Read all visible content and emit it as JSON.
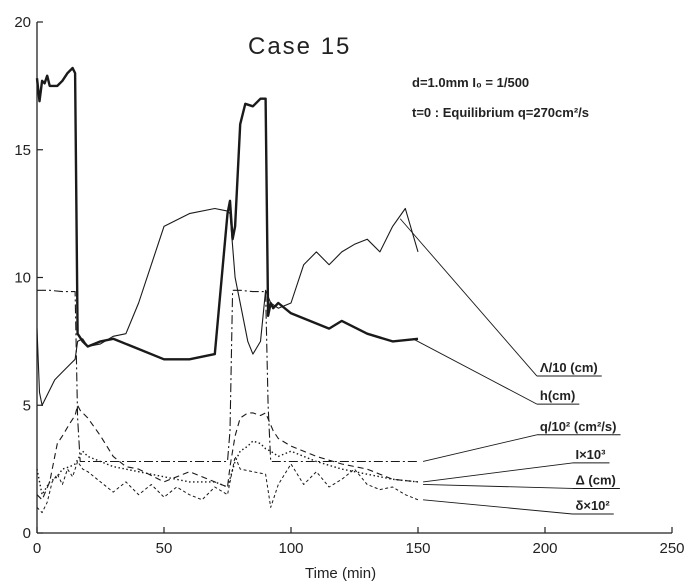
{
  "chart_data": {
    "type": "line",
    "title": "Case  15",
    "annotations": [
      "d=1.0mm  I₀ = 1/500",
      "t=0 : Equilibrium   q=270cm²/s"
    ],
    "xlabel": "Time (min)",
    "ylabel": "",
    "xlim": [
      0,
      250
    ],
    "ylim": [
      0,
      20
    ],
    "xticks": [
      0,
      50,
      100,
      150,
      200,
      250
    ],
    "yticks": [
      0,
      5,
      10,
      15,
      20
    ],
    "grid": false,
    "series": [
      {
        "name": "Λ/10 (cm)",
        "style": "thin",
        "x": [
          0,
          1,
          2,
          4,
          7,
          10,
          13,
          15,
          16,
          18,
          20,
          25,
          30,
          35,
          40,
          50,
          60,
          70,
          75,
          76,
          78,
          80,
          83,
          85,
          88,
          90,
          92,
          95,
          100,
          105,
          110,
          115,
          120,
          125,
          130,
          135,
          140,
          145,
          150
        ],
        "y": [
          8.0,
          5.5,
          5.0,
          5.4,
          6.0,
          6.3,
          6.6,
          6.8,
          7.5,
          7.6,
          7.3,
          7.4,
          7.7,
          7.8,
          9.0,
          12.0,
          12.5,
          12.7,
          12.6,
          12.5,
          10.0,
          9.0,
          7.5,
          7.0,
          7.5,
          9.5,
          9.0,
          8.8,
          9.0,
          10.5,
          11.0,
          10.5,
          11.0,
          11.3,
          11.5,
          11.0,
          12.0,
          12.7,
          11.0
        ]
      },
      {
        "name": "h(cm)",
        "style": "thick",
        "x": [
          0,
          1,
          2,
          3,
          4,
          5,
          8,
          10,
          12,
          14,
          15,
          16,
          18,
          20,
          25,
          30,
          40,
          50,
          55,
          60,
          70,
          75,
          76,
          77,
          78,
          80,
          82,
          85,
          88,
          90,
          91,
          92,
          93,
          95,
          100,
          105,
          110,
          115,
          120,
          130,
          140,
          150
        ],
        "y": [
          17.8,
          16.9,
          17.7,
          17.6,
          17.9,
          17.5,
          17.5,
          17.7,
          18.0,
          18.2,
          18.0,
          7.8,
          7.5,
          7.3,
          7.5,
          7.6,
          7.2,
          6.8,
          6.8,
          6.8,
          7.0,
          12.5,
          13.0,
          11.5,
          12.0,
          16.0,
          16.8,
          16.7,
          17.0,
          17.0,
          8.5,
          9.0,
          8.8,
          9.0,
          8.6,
          8.4,
          8.2,
          8.0,
          8.3,
          7.8,
          7.5,
          7.6
        ]
      },
      {
        "name": "q/10² (cm²/s)",
        "style": "dashdot",
        "x": [
          0,
          1,
          5,
          10,
          15,
          16,
          17,
          20,
          30,
          50,
          70,
          75,
          76,
          77,
          80,
          85,
          90,
          91,
          92,
          100,
          120,
          150
        ],
        "y": [
          9.5,
          9.5,
          9.5,
          9.45,
          9.45,
          4.5,
          2.8,
          2.8,
          2.8,
          2.8,
          2.8,
          2.8,
          4.0,
          9.5,
          9.5,
          9.45,
          9.45,
          5.0,
          2.8,
          2.8,
          2.8,
          2.8
        ]
      },
      {
        "name": "I×10³",
        "style": "dashed",
        "x": [
          0,
          2,
          5,
          8,
          10,
          13,
          15,
          16,
          17,
          20,
          25,
          30,
          35,
          40,
          50,
          60,
          70,
          75,
          76,
          78,
          80,
          83,
          85,
          88,
          90,
          93,
          95,
          100,
          110,
          120,
          130,
          140,
          150
        ],
        "y": [
          1.5,
          1.3,
          2.0,
          3.5,
          3.8,
          4.3,
          4.6,
          5.0,
          4.8,
          4.5,
          3.8,
          3.0,
          2.6,
          2.5,
          2.0,
          2.4,
          2.0,
          1.8,
          2.6,
          3.8,
          4.5,
          4.7,
          4.7,
          4.6,
          4.7,
          4.0,
          3.7,
          3.4,
          3.0,
          2.7,
          2.5,
          2.1,
          2.0
        ]
      },
      {
        "name": "Δ (cm)",
        "style": "dotted",
        "x": [
          0,
          2,
          5,
          8,
          10,
          13,
          15,
          18,
          20,
          25,
          30,
          40,
          50,
          60,
          70,
          75,
          78,
          80,
          83,
          85,
          88,
          90,
          92,
          95,
          100,
          110,
          120,
          130,
          140,
          150
        ],
        "y": [
          2.5,
          1.5,
          2.0,
          2.2,
          2.5,
          2.6,
          2.7,
          3.2,
          3.0,
          2.8,
          2.6,
          2.4,
          2.2,
          2.0,
          2.0,
          1.8,
          2.8,
          3.2,
          3.4,
          3.6,
          3.5,
          3.3,
          3.2,
          3.0,
          3.2,
          2.8,
          2.5,
          2.3,
          2.1,
          2.0
        ]
      },
      {
        "name": "δ×10²",
        "style": "finedash",
        "x": [
          0,
          2,
          4,
          6,
          8,
          10,
          12,
          14,
          16,
          18,
          20,
          25,
          30,
          35,
          40,
          45,
          50,
          55,
          60,
          65,
          70,
          75,
          78,
          80,
          85,
          90,
          92,
          95,
          100,
          105,
          110,
          115,
          120,
          125,
          130,
          135,
          140,
          145,
          150
        ],
        "y": [
          1.0,
          0.8,
          1.2,
          2.0,
          2.3,
          1.9,
          2.5,
          2.2,
          2.8,
          2.5,
          2.4,
          2.0,
          1.6,
          2.0,
          1.5,
          1.9,
          1.4,
          1.8,
          1.5,
          1.3,
          1.8,
          1.5,
          3.0,
          2.5,
          2.4,
          2.3,
          1.0,
          1.9,
          2.7,
          1.9,
          2.4,
          1.8,
          2.1,
          2.5,
          1.9,
          1.7,
          1.8,
          1.5,
          1.3
        ]
      }
    ],
    "legend_labels": [
      {
        "series": 0,
        "label_x": 198,
        "label_y": 6.3,
        "point_x": 143,
        "point_y": 12.3
      },
      {
        "series": 1,
        "label_x": 198,
        "label_y": 5.2,
        "point_x": 148,
        "point_y": 7.6
      },
      {
        "series": 2,
        "label_x": 198,
        "label_y": 4.0,
        "point_x": 152,
        "point_y": 2.8
      },
      {
        "series": 3,
        "label_x": 212,
        "label_y": 2.9,
        "point_x": 152,
        "point_y": 2.0
      },
      {
        "series": 4,
        "label_x": 212,
        "label_y": 1.9,
        "point_x": 152,
        "point_y": 1.9
      },
      {
        "series": 5,
        "label_x": 212,
        "label_y": 0.9,
        "point_x": 152,
        "point_y": 1.3
      }
    ]
  }
}
